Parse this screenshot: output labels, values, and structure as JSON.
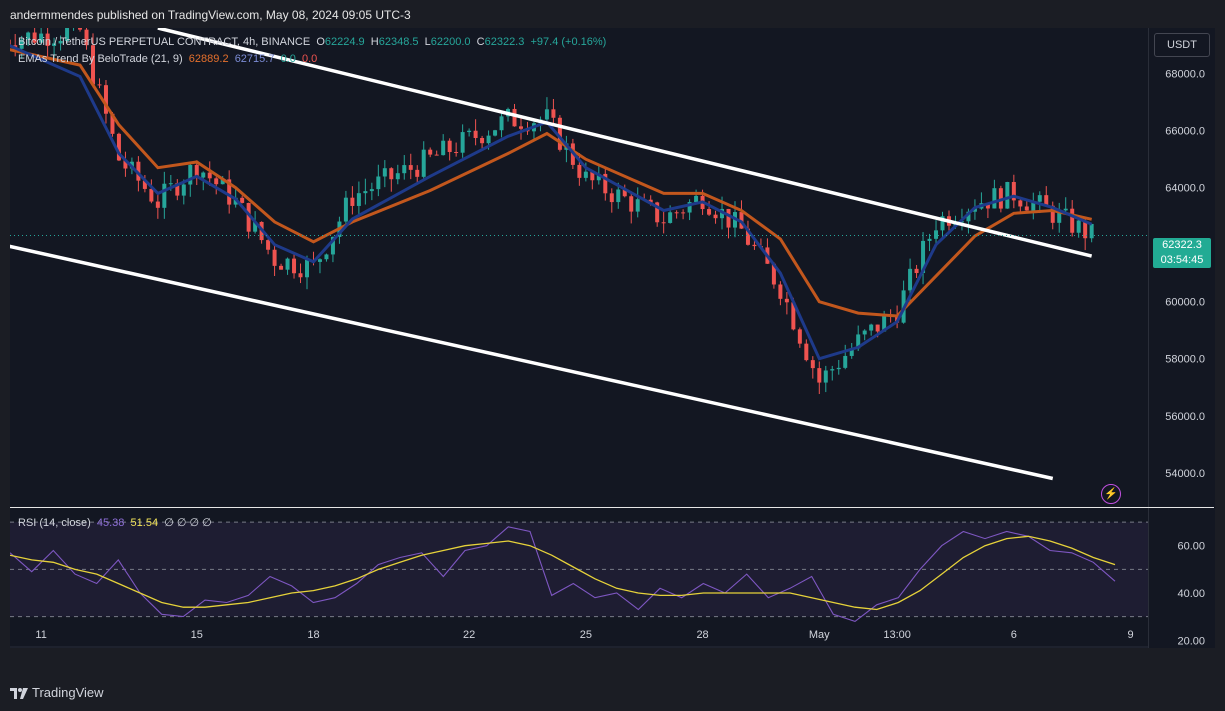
{
  "header": {
    "publisher": "andermmendes published on TradingView.com, May 08, 2024 09:05 UTC-3"
  },
  "legend": {
    "symbol": "Bitcoin / TetherUS PERPETUAL CONTRACT, 4h, BINANCE",
    "o_key": "O",
    "o_val": "62224.9",
    "h_key": "H",
    "h_val": "62348.5",
    "l_key": "L",
    "l_val": "62200.0",
    "c_key": "C",
    "c_val": "62322.3",
    "change": "+97.4 (+0.16%)",
    "ema_name": "EMAs Trend By BeloTrade (21, 9)",
    "ema_v1": "62889.2",
    "ema_v2": "62715.7",
    "ema_v3": "0.0",
    "ema_v4": "0.0"
  },
  "rsi_legend": {
    "name": "RSI (14, close)",
    "v1": "45.38",
    "v2": "51.54",
    "rest": "∅ ∅ ∅ ∅"
  },
  "price_axis": {
    "currency": "USDT",
    "last_price": "62322.3",
    "countdown": "03:54:45"
  },
  "brand": {
    "name": "TradingView",
    "logo_icon": "tradingview-logo-icon"
  },
  "colors": {
    "up": "#26a69a",
    "down": "#ef5350",
    "ema_fast": "#1e3a8a",
    "ema_slow": "#c2571d",
    "rsi": "#7e57c2",
    "rsi_ma": "#e6d23a",
    "trendline": "#ffffff",
    "background": "#131722"
  },
  "chart_data": [
    {
      "type": "candlestick",
      "title": "Bitcoin / TetherUS PERPETUAL CONTRACT, 4h, BINANCE",
      "x_tick_labels": [
        "11",
        "15",
        "18",
        "22",
        "25",
        "28",
        "May",
        "13:00",
        "6",
        "9"
      ],
      "y_tick_labels": [
        "54000.0",
        "56000.0",
        "58000.0",
        "60000.0",
        "62000.0",
        "64000.0",
        "66000.0",
        "68000.0"
      ],
      "ylim": [
        52800,
        69600
      ],
      "grid": false,
      "last_close": 62322.3,
      "series_ohlc_anchors": [
        {
          "x": "Apr 10",
          "close": 69200
        },
        {
          "x": "Apr 12",
          "close": 69500
        },
        {
          "x": "Apr 13",
          "close": 65000
        },
        {
          "x": "Apr 14",
          "close": 63500
        },
        {
          "x": "Apr 15",
          "close": 64800
        },
        {
          "x": "Apr 16",
          "close": 63500
        },
        {
          "x": "Apr 17",
          "close": 61500
        },
        {
          "x": "Apr 18",
          "close": 61200
        },
        {
          "x": "Apr 19",
          "close": 63700
        },
        {
          "x": "Apr 21",
          "close": 65000
        },
        {
          "x": "Apr 23",
          "close": 66400
        },
        {
          "x": "Apr 24",
          "close": 66400
        },
        {
          "x": "Apr 25",
          "close": 64300
        },
        {
          "x": "Apr 27",
          "close": 62900
        },
        {
          "x": "Apr 28",
          "close": 63700
        },
        {
          "x": "Apr 29",
          "close": 62500
        },
        {
          "x": "Apr 30",
          "close": 60500
        },
        {
          "x": "May 1",
          "close": 57200
        },
        {
          "x": "May 2",
          "close": 58600
        },
        {
          "x": "May 3",
          "close": 59700
        },
        {
          "x": "May 4",
          "close": 62800
        },
        {
          "x": "May 5",
          "close": 63500
        },
        {
          "x": "May 6",
          "close": 63800
        },
        {
          "x": "May 7",
          "close": 63100
        },
        {
          "x": "May 8",
          "close": 62322.3
        }
      ],
      "ema_fast": [
        69100,
        67900,
        65200,
        63800,
        64400,
        63600,
        62000,
        61400,
        62900,
        64400,
        65800,
        66300,
        64700,
        63200,
        63500,
        62800,
        61000,
        58000,
        58400,
        59300,
        62000,
        63300,
        63700,
        63300,
        62716
      ],
      "ema_slow": [
        68900,
        68300,
        66200,
        64700,
        64900,
        64000,
        62800,
        62100,
        62800,
        63900,
        65200,
        65900,
        65000,
        63800,
        63800,
        63200,
        62200,
        60000,
        59600,
        59500,
        60900,
        62300,
        63100,
        63200,
        62889
      ],
      "channel": {
        "upper": [
          {
            "x": "Apr 14",
            "y": 69600
          },
          {
            "x": "May 8",
            "y": 61600
          }
        ],
        "lower": [
          {
            "x": "Apr 10",
            "y": 62000
          },
          {
            "x": "May 7",
            "y": 53800
          }
        ]
      }
    },
    {
      "type": "line",
      "title": "RSI (14, close)",
      "y_tick_labels": [
        "20.00",
        "40.00",
        "60.00"
      ],
      "ylim": [
        18,
        73
      ],
      "bands": [
        30,
        50,
        70
      ],
      "series": [
        {
          "name": "45.38",
          "values": [
            57,
            49,
            58,
            48,
            44,
            54,
            40,
            31,
            30,
            37,
            36,
            39,
            47,
            43,
            36,
            38,
            44,
            52,
            55,
            57,
            47,
            58,
            60,
            68,
            66,
            39,
            44,
            38,
            40,
            33,
            42,
            38,
            44,
            40,
            48,
            38,
            42,
            47,
            31,
            28,
            35,
            38,
            50,
            60,
            66,
            63,
            66,
            64,
            58,
            57,
            53,
            45
          ]
        },
        {
          "name": "51.54",
          "values": [
            56,
            54,
            53,
            50,
            48,
            44,
            40,
            36,
            34,
            34,
            35,
            36,
            38,
            40,
            41,
            43,
            46,
            50,
            53,
            56,
            58,
            60,
            61,
            62,
            60,
            56,
            51,
            46,
            42,
            40,
            39,
            39,
            40,
            40,
            40,
            40,
            40,
            38,
            36,
            34,
            33,
            36,
            41,
            48,
            55,
            60,
            63,
            64,
            62,
            59,
            55,
            52
          ]
        }
      ]
    }
  ]
}
